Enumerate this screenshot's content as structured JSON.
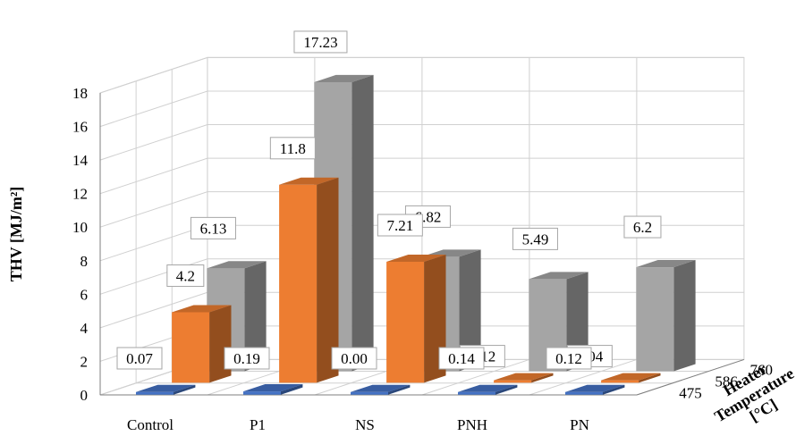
{
  "chart_data": {
    "type": "bar",
    "subtype": "3d-clustered-columns",
    "categories": [
      "Control",
      "P1",
      "NS",
      "PNH",
      "PN"
    ],
    "depth_axis": {
      "title_lines": [
        "Heater",
        "Temperature",
        "[°C]"
      ],
      "labels": [
        "475",
        "586",
        "760"
      ]
    },
    "series": [
      {
        "name": "475",
        "color": "#4472C4",
        "values": [
          0.07,
          0.19,
          0.0,
          0.14,
          0.12
        ],
        "labels": [
          "0.07",
          "0.19",
          "0.00",
          "0.14",
          "0.12"
        ]
      },
      {
        "name": "586",
        "color": "#ED7D31",
        "values": [
          4.2,
          11.8,
          7.21,
          0.12,
          0.04
        ],
        "labels": [
          "4.2",
          "11.8",
          "7.21",
          "0.12",
          "0.04"
        ]
      },
      {
        "name": "760",
        "color": "#A5A5A5",
        "values": [
          6.13,
          17.23,
          6.82,
          5.49,
          6.2
        ],
        "labels": [
          "6.13",
          "17.23",
          "6.82",
          "5.49",
          "6.2"
        ]
      }
    ],
    "y_axis": {
      "title": "THV [MJ/m²]",
      "ticks": [
        "0",
        "2",
        "4",
        "6",
        "8",
        "10",
        "12",
        "14",
        "16",
        "18"
      ],
      "ylim": [
        0,
        18
      ]
    },
    "grid": true
  }
}
